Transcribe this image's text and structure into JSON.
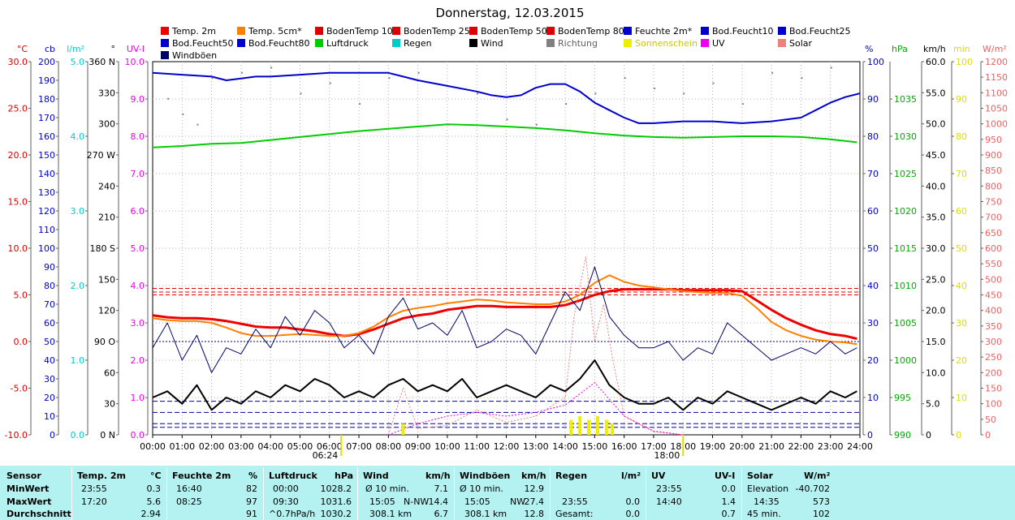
{
  "chart_data": {
    "type": "line",
    "title": "Donnerstag, 12.03.2015",
    "x_ticks": [
      "00:00",
      "01:00",
      "02:00",
      "03:00",
      "04:00",
      "05:00",
      "06:00",
      "07:00",
      "08:00",
      "09:00",
      "10:00",
      "11:00",
      "12:00",
      "13:00",
      "14:00",
      "15:00",
      "16:00",
      "17:00",
      "18:00",
      "19:00",
      "20:00",
      "21:00",
      "22:00",
      "23:00",
      "24:00"
    ],
    "sunrise": "06:24",
    "sunset": "18:00",
    "legend": [
      {
        "name": "Temp. 2m",
        "color": "#ee0000"
      },
      {
        "name": "Temp. 5cm*",
        "color": "#ff8000"
      },
      {
        "name": "BodenTemp 10",
        "color": "#dd0000"
      },
      {
        "name": "BodenTemp 25",
        "color": "#dd0000"
      },
      {
        "name": "BodenTemp 50",
        "color": "#dd0000"
      },
      {
        "name": "BodenTemp 80",
        "color": "#dd0000"
      },
      {
        "name": "Feuchte 2m*",
        "color": "#0000cc"
      },
      {
        "name": "Bod.Feucht10",
        "color": "#0000cc"
      },
      {
        "name": "Bod.Feucht25",
        "color": "#0000cc"
      },
      {
        "name": "Bod.Feucht50",
        "color": "#0000cc"
      },
      {
        "name": "Bod.Feucht80",
        "color": "#0000cc"
      },
      {
        "name": "Luftdruck",
        "color": "#00cc00"
      },
      {
        "name": "Regen",
        "color": "#00cccc"
      },
      {
        "name": "Wind",
        "color": "#000000"
      },
      {
        "name": "Richtung",
        "color": "#808080"
      },
      {
        "name": "Sonnenschein",
        "color": "#eeee00"
      },
      {
        "name": "UV",
        "color": "#ee00ee"
      },
      {
        "name": "Solar",
        "color": "#ee8080"
      },
      {
        "name": "Windböen",
        "color": "#000066"
      }
    ],
    "axes_left": [
      {
        "unit": "°C",
        "color": "#dd0000",
        "min": -10,
        "max": 30,
        "ticks": [
          "-10.0",
          "-5.0",
          "0.0",
          "5.0",
          "10.0",
          "15.0",
          "20.0",
          "25.0",
          "30.0"
        ]
      },
      {
        "unit": "cb",
        "color": "#0000cc",
        "min": 0,
        "max": 200,
        "ticks": [
          "0",
          "10",
          "20",
          "30",
          "40",
          "50",
          "60",
          "70",
          "80",
          "90",
          "100",
          "110",
          "120",
          "130",
          "140",
          "150",
          "160",
          "170",
          "180",
          "190",
          "200"
        ]
      },
      {
        "unit": "l/m²",
        "color": "#00cccc",
        "min": 0,
        "max": 5,
        "ticks": [
          "0.0",
          "1.0",
          "2.0",
          "3.0",
          "4.0",
          "5.0"
        ]
      },
      {
        "unit": "°",
        "color": "#000000",
        "min": 0,
        "max": 360,
        "ticks": [
          "0 N",
          "30",
          "60",
          "90 O",
          "120",
          "150",
          "180 S",
          "210",
          "240",
          "270 W",
          "300",
          "330",
          "360 N"
        ]
      },
      {
        "unit": "UV-I",
        "color": "#ee00ee",
        "min": 0,
        "max": 10,
        "ticks": [
          "0.0",
          "1.0",
          "2.0",
          "3.0",
          "4.0",
          "5.0",
          "6.0",
          "7.0",
          "8.0",
          "9.0",
          "10.0"
        ]
      }
    ],
    "axes_right": [
      {
        "unit": "%",
        "color": "#0000cc",
        "min": 0,
        "max": 100,
        "ticks": [
          "0",
          "10",
          "20",
          "30",
          "40",
          "50",
          "60",
          "70",
          "80",
          "90",
          "100"
        ]
      },
      {
        "unit": "hPa",
        "color": "#00aa00",
        "min": 990,
        "max": 1040,
        "ticks": [
          "990",
          "995",
          "1000",
          "1005",
          "1010",
          "1015",
          "1020",
          "1025",
          "1030",
          "1035"
        ]
      },
      {
        "unit": "km/h",
        "color": "#000000",
        "min": 0,
        "max": 60,
        "ticks": [
          "0",
          "5.0",
          "10.0",
          "15.0",
          "20.0",
          "25.0",
          "30.0",
          "35.0",
          "40.0",
          "45.0",
          "50.0",
          "55.0",
          "60.0"
        ]
      },
      {
        "unit": "min",
        "color": "#dddd00",
        "min": 0,
        "max": 100,
        "ticks": [
          "0",
          "10",
          "20",
          "30",
          "40",
          "50",
          "60",
          "70",
          "80",
          "90",
          "100"
        ]
      },
      {
        "unit": "W/m²",
        "color": "#ee6060",
        "min": 0,
        "max": 1200,
        "ticks": [
          "0",
          "50",
          "100",
          "150",
          "200",
          "250",
          "300",
          "350",
          "400",
          "450",
          "500",
          "550",
          "600",
          "650",
          "700",
          "750",
          "800",
          "850",
          "900",
          "950",
          "1000",
          "1050",
          "1100",
          "1150",
          "1200"
        ]
      }
    ],
    "series": [
      {
        "name": "Temp. 2m",
        "color": "#ee0000",
        "unit": "°C",
        "x": [
          0,
          0.5,
          1,
          1.5,
          2,
          2.5,
          3,
          3.5,
          4,
          4.5,
          5,
          5.5,
          6,
          6.5,
          7,
          7.5,
          8,
          8.5,
          9,
          9.5,
          10,
          10.5,
          11,
          11.5,
          12,
          12.5,
          13,
          13.5,
          14,
          14.5,
          15,
          15.5,
          16,
          16.5,
          17,
          17.5,
          18,
          18.5,
          19,
          19.5,
          20,
          20.5,
          21,
          21.5,
          22,
          22.5,
          23,
          23.5,
          23.9
        ],
        "y": [
          2.8,
          2.6,
          2.5,
          2.5,
          2.4,
          2.2,
          1.9,
          1.6,
          1.5,
          1.5,
          1.3,
          1.1,
          0.8,
          0.6,
          0.8,
          1.3,
          1.9,
          2.5,
          2.8,
          3.0,
          3.4,
          3.6,
          3.8,
          3.8,
          3.7,
          3.7,
          3.7,
          3.7,
          3.9,
          4.4,
          5.0,
          5.4,
          5.6,
          5.6,
          5.6,
          5.6,
          5.5,
          5.5,
          5.5,
          5.5,
          5.4,
          4.4,
          3.4,
          2.5,
          1.8,
          1.2,
          0.8,
          0.6,
          0.3
        ]
      },
      {
        "name": "Temp. 5cm*",
        "color": "#ff8000",
        "unit": "°C",
        "x": [
          0,
          0.5,
          1,
          1.5,
          2,
          2.5,
          3,
          3.5,
          4,
          4.5,
          5,
          5.5,
          6,
          6.5,
          7,
          7.5,
          8,
          8.5,
          9,
          9.5,
          10,
          10.5,
          11,
          11.5,
          12,
          12.5,
          13,
          13.5,
          14,
          14.5,
          15,
          15.5,
          16,
          16.5,
          17,
          17.5,
          18,
          18.5,
          19,
          19.5,
          20,
          20.5,
          21,
          21.5,
          22,
          22.5,
          23,
          23.5,
          23.9
        ],
        "y": [
          2.5,
          2.3,
          2.2,
          2.2,
          2.0,
          1.5,
          0.9,
          0.6,
          0.6,
          0.7,
          0.8,
          0.7,
          0.6,
          0.6,
          0.9,
          1.6,
          2.6,
          3.3,
          3.6,
          3.8,
          4.1,
          4.3,
          4.5,
          4.4,
          4.2,
          4.1,
          4.0,
          4.0,
          4.3,
          5.0,
          6.3,
          7.1,
          6.4,
          6.0,
          5.8,
          5.6,
          5.4,
          5.3,
          5.2,
          5.2,
          4.9,
          3.6,
          2.1,
          1.2,
          0.6,
          0.2,
          0.0,
          -0.1,
          -0.3
        ]
      },
      {
        "name": "Feuchte 2m*",
        "color": "#0000cc",
        "unit": "%",
        "x": [
          0,
          1,
          2,
          2.5,
          3,
          3.5,
          4,
          5,
          6,
          7,
          8,
          8.5,
          9,
          10,
          11,
          11.5,
          12,
          12.5,
          13,
          13.5,
          14,
          14.5,
          15,
          15.5,
          16,
          16.5,
          17,
          18,
          19,
          20,
          21,
          22,
          22.5,
          23,
          23.5,
          24
        ],
        "y": [
          97,
          96.5,
          96,
          95,
          95.5,
          96,
          96,
          96.5,
          97,
          97,
          97,
          96,
          95,
          93.5,
          92,
          91,
          90.5,
          91,
          93,
          94,
          94,
          92,
          89,
          87,
          85,
          83.5,
          83.5,
          84,
          84,
          83.5,
          84,
          85,
          87,
          89,
          90.5,
          91.5
        ]
      },
      {
        "name": "Luftdruck",
        "color": "#00cc00",
        "unit": "hPa",
        "x": [
          0,
          1,
          2,
          3,
          4,
          5,
          6,
          7,
          8,
          9,
          10,
          11,
          12,
          13,
          14,
          15,
          16,
          17,
          18,
          19,
          20,
          21,
          22,
          23,
          23.9
        ],
        "y": [
          1028.5,
          1028.7,
          1029.0,
          1029.1,
          1029.5,
          1029.9,
          1030.3,
          1030.7,
          1031.0,
          1031.3,
          1031.6,
          1031.5,
          1031.3,
          1031.1,
          1030.8,
          1030.4,
          1030.1,
          1029.9,
          1029.8,
          1029.9,
          1030.0,
          1030.0,
          1029.9,
          1029.6,
          1029.2
        ]
      },
      {
        "name": "Wind",
        "color": "#000000",
        "unit": "km/h",
        "x": [
          0,
          0.5,
          1,
          1.5,
          2,
          2.5,
          3,
          3.5,
          4,
          4.5,
          5,
          5.5,
          6,
          6.5,
          7,
          7.5,
          8,
          8.5,
          9,
          9.5,
          10,
          10.5,
          11,
          11.5,
          12,
          12.5,
          13,
          13.5,
          14,
          14.5,
          15,
          15.5,
          16,
          16.5,
          17,
          17.5,
          18,
          18.5,
          19,
          19.5,
          20,
          20.5,
          21,
          21.5,
          22,
          22.5,
          23,
          23.5,
          23.9
        ],
        "y": [
          6,
          7,
          5,
          8,
          4,
          6,
          5,
          7,
          6,
          8,
          7,
          9,
          8,
          6,
          7,
          6,
          8,
          9,
          7,
          8,
          7,
          9,
          6,
          7,
          8,
          7,
          6,
          8,
          7,
          9,
          12,
          8,
          6,
          5,
          5,
          6,
          4,
          6,
          5,
          7,
          6,
          5,
          4,
          5,
          6,
          5,
          7,
          6,
          7
        ]
      },
      {
        "name": "Windböen",
        "color": "#000066",
        "unit": "km/h",
        "x": [
          0,
          0.5,
          1,
          1.5,
          2,
          2.5,
          3,
          3.5,
          4,
          4.5,
          5,
          5.5,
          6,
          6.5,
          7,
          7.5,
          8,
          8.5,
          9,
          9.5,
          10,
          10.5,
          11,
          11.5,
          12,
          12.5,
          13,
          13.5,
          14,
          14.5,
          15,
          15.5,
          16,
          16.5,
          17,
          17.5,
          18,
          18.5,
          19,
          19.5,
          20,
          20.5,
          21,
          21.5,
          22,
          22.5,
          23,
          23.5,
          23.9
        ],
        "y": [
          14,
          18,
          12,
          16,
          10,
          14,
          13,
          17,
          14,
          19,
          16,
          20,
          18,
          14,
          16,
          13,
          19,
          22,
          17,
          18,
          16,
          20,
          14,
          15,
          17,
          16,
          13,
          18,
          23,
          20,
          27,
          19,
          16,
          14,
          14,
          15,
          12,
          14,
          13,
          18,
          16,
          14,
          12,
          13,
          14,
          13,
          15,
          13,
          14
        ]
      },
      {
        "name": "Richtung",
        "color": "#808080",
        "unit": "°",
        "x": [
          0.5,
          1,
          1.5,
          2,
          3,
          4,
          5,
          6,
          7,
          8,
          9,
          10,
          11,
          12,
          13,
          14,
          15,
          16,
          17,
          18,
          19,
          20,
          21,
          22,
          23
        ],
        "y": [
          325,
          310,
          300,
          345,
          350,
          355,
          330,
          340,
          320,
          345,
          350,
          300,
          330,
          305,
          300,
          320,
          330,
          345,
          335,
          330,
          340,
          320,
          350,
          345,
          355
        ]
      },
      {
        "name": "Solar",
        "color": "#ee8080",
        "unit": "W/m²",
        "x": [
          8,
          8.5,
          9,
          10,
          11,
          12,
          13,
          14,
          14.3,
          14.7,
          15,
          15.3,
          15.6,
          16,
          17,
          18
        ],
        "y": [
          0,
          150,
          20,
          30,
          80,
          40,
          60,
          120,
          380,
          573,
          300,
          420,
          250,
          60,
          10,
          0
        ]
      },
      {
        "name": "UV",
        "color": "#ee00ee",
        "unit": "UV-I",
        "x": [
          8,
          9,
          10,
          11,
          12,
          13,
          14,
          15,
          16,
          17,
          18
        ],
        "y": [
          0,
          0.3,
          0.5,
          0.6,
          0.5,
          0.6,
          0.8,
          1.4,
          0.5,
          0.1,
          0
        ]
      },
      {
        "name": "Sonnenschein",
        "color": "#eeee00",
        "unit": "min",
        "x": [
          8.5,
          14.2,
          14.5,
          14.8,
          15.1,
          15.4,
          15.6
        ],
        "y": [
          3,
          4,
          5,
          4,
          5,
          4,
          3
        ]
      }
    ]
  },
  "table": {
    "columns": [
      {
        "sensor": "Temp. 2m",
        "unit": "°C"
      },
      {
        "sensor": "Feuchte 2m",
        "unit": "%"
      },
      {
        "sensor": "Luftdruck",
        "unit": "hPa"
      },
      {
        "sensor": "Wind",
        "unit": "km/h"
      },
      {
        "sensor": "Windböen",
        "unit": "km/h"
      },
      {
        "sensor": "Regen",
        "unit": "l/m²"
      },
      {
        "sensor": "UV",
        "unit": "UV-I"
      },
      {
        "sensor": "Solar",
        "unit": "W/m²"
      }
    ],
    "row_labels": [
      "Sensor",
      "MinWert",
      "MaxWert",
      "Durchschnitt"
    ],
    "cells": {
      "temp": {
        "min_time": "23:55",
        "min_val": "0.3",
        "max_time": "17:20",
        "max_val": "5.6",
        "avg": "2.94"
      },
      "hum": {
        "min_time": "16:40",
        "min_val": "82",
        "max_time": "08:25",
        "max_val": "97",
        "avg": "91"
      },
      "press": {
        "min_time": "00:00",
        "min_val": "1028.2",
        "max_time": "09:30",
        "max_val": "1031.6",
        "avg_note": "^0.7hPa/h",
        "avg": "1030.2"
      },
      "wind": {
        "min_time": "Ø 10 min.",
        "min_val": "7.1",
        "max_time": "15:05",
        "max_dir": "N-NW",
        "max_val": "14.4",
        "avg_note": "308.1 km",
        "avg": "6.7"
      },
      "gust": {
        "min_time": "Ø 10 min.",
        "min_val": "12.9",
        "max_time": "15:05",
        "max_dir": "NW",
        "max_val": "27.4",
        "avg_note": "308.1 km",
        "avg": "12.8"
      },
      "rain": {
        "max_time": "23:55",
        "max_val": "0.0",
        "avg_note": "Gesamt:",
        "avg": "0.0"
      },
      "uv": {
        "min_time": "23:55",
        "min_val": "0.0",
        "max_time": "14:40",
        "max_val": "1.4",
        "avg": "0.7"
      },
      "solar": {
        "min_time": "Elevation",
        "min_val": "-40.702",
        "max_time": "14:35",
        "max_val": "573",
        "avg_note": "45 min.",
        "avg": "102"
      }
    }
  }
}
